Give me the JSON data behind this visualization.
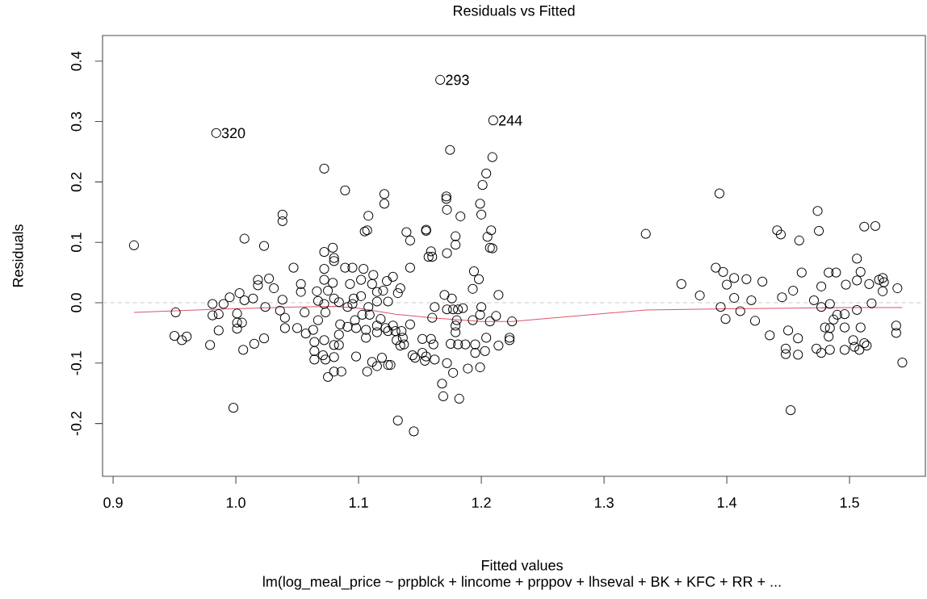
{
  "chart_data": {
    "type": "scatter",
    "title": "Residuals vs Fitted",
    "xlabel": "Fitted values",
    "ylabel": "Residuals",
    "annotations": [
      {
        "text": "320",
        "x": 0.984,
        "y": 0.281
      },
      {
        "text": "293",
        "x": 1.1665,
        "y": 0.369
      },
      {
        "text": "244",
        "x": 1.2097,
        "y": 0.302
      },
      "lm(log_meal_price ~ prpblck + lincome + prppov + lhseval + BK + KFC + RR +  ..."
    ],
    "xlim": [
      0.8914,
      1.5618
    ],
    "ylim": [
      -0.2874,
      0.4425
    ],
    "xticks": [
      0.9,
      {
        "value": 1,
        "label": "1.0"
      },
      1.1,
      1.2,
      1.3,
      1.4,
      1.5
    ],
    "yticks": [
      -0.2,
      -0.1,
      {
        "value": 0,
        "label": "0.0"
      },
      0.1,
      0.2,
      0.3,
      0.4
    ],
    "ref_lines": [
      {
        "axis": "y",
        "value": 0,
        "color": "#bebebe",
        "line_style": "dashed"
      }
    ],
    "series": [
      {
        "type": "scatter",
        "color": "#000000",
        "marker": "circle",
        "x": [
          0.984,
          1.072,
          1.089,
          1.038,
          1.038,
          0.917,
          1.007,
          1.023,
          1.047,
          1.079,
          1.072,
          1.08,
          1.018,
          1.018,
          1.027,
          1.031,
          1.053,
          1.053,
          1.066,
          1.038,
          0.995,
          1.003,
          0.981,
          0.99,
          1.007,
          1.014,
          1.024,
          0.951,
          0.981,
          0.986,
          1.001,
          1.001,
          1.005,
          1.001,
          0.986,
          0.95,
          0.956,
          0.96,
          0.979,
          1.006,
          1.015,
          1.023,
          1.036,
          1.04,
          1.04,
          1.05,
          1.057,
          1.056,
          1.067,
          1.063,
          1.064,
          1.064,
          1.064,
          1.071,
          1.073,
          1.08,
          1.075,
          1.08,
          1.086,
          0.998,
          1.072,
          1.08,
          1.084,
          1.084,
          1.072,
          1.072,
          1.079,
          1.075,
          1.072,
          1.08,
          1.073,
          1.1745,
          1.121,
          1.121,
          1.1715,
          1.1715,
          1.172,
          1.183,
          1.108,
          1.105,
          1.107,
          1.139,
          1.142,
          1.155,
          1.155,
          1.179,
          1.179,
          1.172,
          1.157,
          1.16,
          1.159,
          1.142,
          1.08,
          1.089,
          1.095,
          1.104,
          1.112,
          1.128,
          1.134,
          1.132,
          1.123,
          1.093,
          1.102,
          1.111,
          1.12,
          1.115,
          1.096,
          1.102,
          1.067,
          1.084,
          1.091,
          1.095,
          1.108,
          1.115,
          1.124,
          1.17,
          1.176,
          1.162,
          1.16,
          1.172,
          1.177,
          1.181,
          1.185,
          1.18,
          1.179,
          1.179,
          1.181,
          1.187,
          1.175,
          1.172,
          1.177,
          1.168,
          1.169,
          1.182,
          1.132,
          1.109,
          1.118,
          1.103,
          1.097,
          1.115,
          1.122,
          1.128,
          1.13,
          1.135,
          1.136,
          1.137,
          1.142,
          1.091,
          1.098,
          1.106,
          1.106,
          1.115,
          1.124,
          1.085,
          1.098,
          1.111,
          1.115,
          1.107,
          1.119,
          1.124,
          1.126,
          1.146,
          1.152,
          1.155,
          1.154,
          1.159,
          1.161,
          1.162,
          1.152,
          1.144,
          1.131,
          1.134,
          1.145,
          1.1665,
          1.2097,
          1.209,
          1.204,
          1.201,
          1.199,
          1.2,
          1.208,
          1.205,
          1.207,
          1.209,
          1.194,
          1.198,
          1.193,
          1.214,
          1.2,
          1.199,
          1.193,
          1.207,
          1.212,
          1.225,
          1.223,
          1.223,
          1.204,
          1.203,
          1.214,
          1.195,
          1.195,
          1.189,
          1.199,
          1.334,
          1.394,
          1.441,
          1.444,
          1.459,
          1.474,
          1.475,
          1.512,
          1.521,
          1.506,
          1.509,
          1.461,
          1.483,
          1.489,
          1.477,
          1.497,
          1.506,
          1.516,
          1.524,
          1.527,
          1.528,
          1.527,
          1.539,
          1.518,
          1.506,
          1.391,
          1.397,
          1.363,
          1.378,
          1.4,
          1.406,
          1.416,
          1.429,
          1.406,
          1.42,
          1.395,
          1.411,
          1.399,
          1.423,
          1.445,
          1.454,
          1.435,
          1.45,
          1.458,
          1.448,
          1.448,
          1.458,
          1.452,
          1.471,
          1.477,
          1.484,
          1.49,
          1.496,
          1.487,
          1.48,
          1.484,
          1.483,
          1.496,
          1.509,
          1.473,
          1.477,
          1.484,
          1.496,
          1.503,
          1.504,
          1.508,
          1.512,
          1.514,
          1.538,
          1.538,
          1.543
        ],
        "values": [
          0.281,
          0.222,
          0.186,
          0.146,
          0.135,
          0.095,
          0.106,
          0.094,
          0.058,
          0.091,
          0.084,
          0.074,
          0.038,
          0.029,
          0.04,
          0.024,
          0.031,
          0.018,
          0.019,
          0.005,
          0.009,
          0.016,
          -0.002,
          -0.002,
          0.004,
          0.007,
          -0.007,
          -0.016,
          -0.021,
          -0.019,
          -0.018,
          -0.033,
          -0.033,
          -0.043,
          -0.046,
          -0.055,
          -0.062,
          -0.056,
          -0.07,
          -0.078,
          -0.068,
          -0.059,
          -0.013,
          -0.025,
          -0.042,
          -0.042,
          -0.051,
          -0.016,
          -0.029,
          -0.045,
          -0.065,
          -0.08,
          -0.094,
          -0.087,
          -0.094,
          -0.09,
          -0.123,
          -0.114,
          -0.114,
          -0.174,
          -0.062,
          -0.07,
          -0.07,
          -0.053,
          0.056,
          0.038,
          0.033,
          0.02,
          -0.002,
          0.007,
          -0.016,
          0.253,
          0.18,
          0.164,
          0.176,
          0.172,
          0.154,
          0.143,
          0.144,
          0.118,
          0.12,
          0.117,
          0.103,
          0.121,
          0.119,
          0.11,
          0.096,
          0.082,
          0.076,
          0.076,
          0.085,
          0.058,
          0.069,
          0.058,
          0.058,
          0.056,
          0.046,
          0.043,
          0.024,
          0.016,
          0.036,
          0.031,
          0.038,
          0.031,
          0.02,
          0.018,
          0.007,
          0.011,
          0.003,
          0.001,
          -0.007,
          -0.002,
          -0.007,
          0.002,
          0.002,
          0.013,
          0.007,
          -0.007,
          -0.025,
          -0.011,
          -0.011,
          -0.011,
          -0.009,
          -0.029,
          -0.038,
          -0.049,
          -0.069,
          -0.069,
          -0.068,
          -0.1,
          -0.116,
          -0.134,
          -0.155,
          -0.159,
          -0.195,
          -0.02,
          -0.027,
          -0.02,
          -0.029,
          -0.038,
          -0.042,
          -0.038,
          -0.047,
          -0.047,
          -0.058,
          -0.069,
          -0.036,
          -0.04,
          -0.042,
          -0.045,
          -0.058,
          -0.049,
          -0.047,
          -0.036,
          -0.089,
          -0.098,
          -0.105,
          -0.114,
          -0.091,
          -0.103,
          -0.103,
          -0.091,
          -0.083,
          -0.089,
          -0.096,
          -0.06,
          -0.069,
          -0.094,
          -0.06,
          -0.087,
          -0.062,
          -0.071,
          -0.213,
          0.369,
          0.302,
          0.241,
          0.214,
          0.195,
          0.164,
          0.146,
          0.12,
          0.109,
          0.091,
          0.09,
          0.052,
          0.039,
          0.023,
          0.013,
          -0.007,
          -0.02,
          -0.029,
          -0.031,
          -0.022,
          -0.031,
          -0.058,
          -0.062,
          -0.058,
          -0.08,
          -0.071,
          -0.069,
          -0.083,
          -0.109,
          -0.107,
          0.114,
          0.181,
          0.12,
          0.113,
          0.103,
          0.152,
          0.119,
          0.126,
          0.127,
          0.073,
          0.051,
          0.05,
          0.05,
          0.05,
          0.027,
          0.03,
          0.037,
          0.031,
          0.038,
          0.041,
          0.034,
          0.019,
          0.024,
          -0.001,
          -0.012,
          0.058,
          0.051,
          0.031,
          0.012,
          0.03,
          0.041,
          0.039,
          0.035,
          0.008,
          0.004,
          -0.007,
          -0.014,
          -0.027,
          -0.03,
          0.009,
          0.02,
          -0.054,
          -0.046,
          -0.059,
          -0.076,
          -0.085,
          -0.086,
          -0.178,
          0.004,
          -0.007,
          -0.002,
          -0.02,
          -0.019,
          -0.028,
          -0.041,
          -0.042,
          -0.056,
          -0.041,
          -0.041,
          -0.076,
          -0.083,
          -0.078,
          -0.078,
          -0.062,
          -0.073,
          -0.078,
          -0.067,
          -0.071,
          -0.038,
          -0.05,
          -0.099
        ]
      },
      {
        "type": "line",
        "color": "#df536b",
        "marker": "none",
        "x": [
          0.917,
          0.98,
          1.05,
          1.08,
          1.1,
          1.13,
          1.16,
          1.2,
          1.225,
          1.334,
          1.4,
          1.45,
          1.5,
          1.543
        ],
        "values": [
          -0.016,
          -0.011,
          -0.007,
          -0.006,
          -0.009,
          -0.019,
          -0.025,
          -0.031,
          -0.031,
          -0.012,
          -0.01,
          -0.009,
          -0.008,
          -0.008
        ]
      }
    ]
  }
}
